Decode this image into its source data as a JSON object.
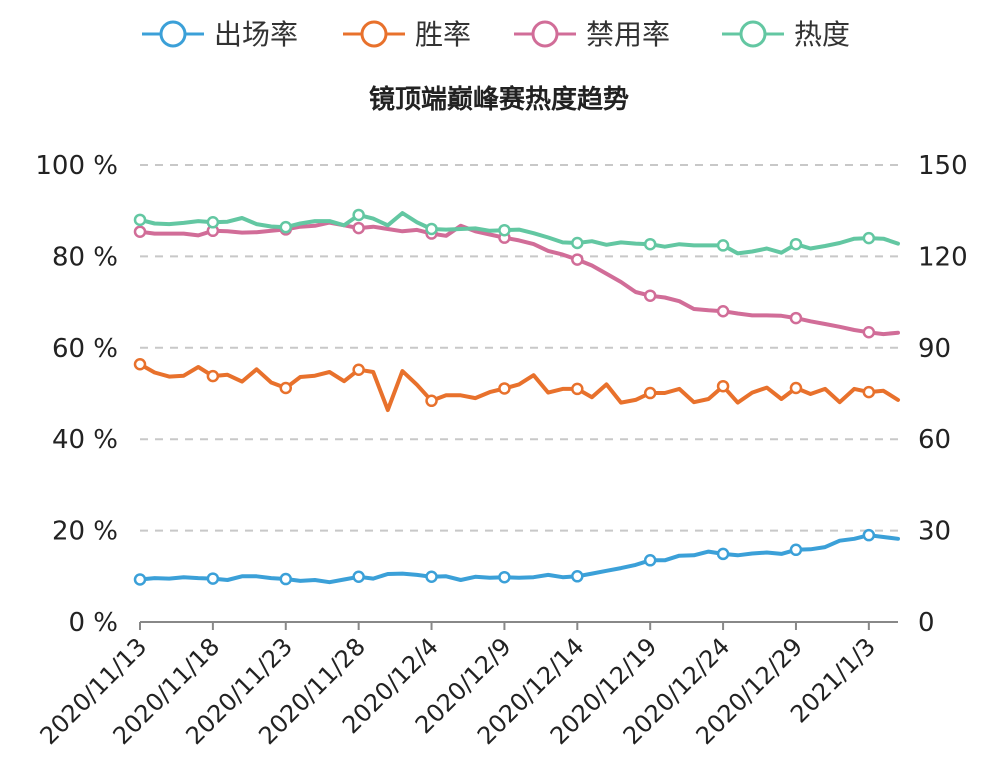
{
  "chart_data": {
    "type": "line",
    "title": "镜顶端巅峰赛热度趋势",
    "legend_position": "top-center",
    "grid": "horizontal-dashed",
    "y_left": {
      "min": 0,
      "max": 100,
      "ticks": [
        0,
        20,
        40,
        60,
        80,
        100
      ],
      "tick_labels": [
        "0 %",
        "20 %",
        "40 %",
        "60 %",
        "80 %",
        "100 %"
      ]
    },
    "y_right": {
      "min": 0,
      "max": 150,
      "ticks": [
        0,
        30,
        60,
        90,
        120,
        150
      ],
      "tick_labels": [
        "0",
        "30",
        "60",
        "90",
        "120",
        "150"
      ]
    },
    "x_tick_labels": [
      "2020/11/13",
      "2020/11/18",
      "2020/11/23",
      "2020/11/28",
      "2020/12/4",
      "2020/12/9",
      "2020/12/14",
      "2020/12/19",
      "2020/12/24",
      "2020/12/29",
      "2021/1/3"
    ],
    "x_tick_index": [
      0,
      5,
      10,
      15,
      20,
      25,
      30,
      35,
      40,
      45,
      50
    ],
    "series": [
      {
        "name": "出场率",
        "axis": "left",
        "color": "#3ba0d8",
        "marker_every": 5,
        "values": [
          9.3,
          9.6,
          9.5,
          9.8,
          9.6,
          9.5,
          9.2,
          10.0,
          10.0,
          9.6,
          9.4,
          9.0,
          9.2,
          8.7,
          9.3,
          9.9,
          9.5,
          10.5,
          10.6,
          10.3,
          9.9,
          10.0,
          9.2,
          9.9,
          9.7,
          9.8,
          9.7,
          9.8,
          10.3,
          9.8,
          10.0,
          10.6,
          11.2,
          11.8,
          12.5,
          13.5,
          13.5,
          14.5,
          14.6,
          15.4,
          14.9,
          14.6,
          15.0,
          15.2,
          14.9,
          15.8,
          15.9,
          16.4,
          17.8,
          18.2,
          19.0,
          18.6,
          18.2
        ]
      },
      {
        "name": "胜率",
        "axis": "left",
        "color": "#e8712c",
        "marker_every": 5,
        "values": [
          56.4,
          54.6,
          53.7,
          53.9,
          55.8,
          53.8,
          54.1,
          52.6,
          55.3,
          52.4,
          51.2,
          53.6,
          53.9,
          54.7,
          52.7,
          55.2,
          54.7,
          46.4,
          54.9,
          51.9,
          48.4,
          49.6,
          49.6,
          49.0,
          50.3,
          51.1,
          52.0,
          54.0,
          50.2,
          51.0,
          51.0,
          49.2,
          52.0,
          48.0,
          48.6,
          50.1,
          50.1,
          51.0,
          48.1,
          48.8,
          51.6,
          48.0,
          50.2,
          51.3,
          48.8,
          51.2,
          49.9,
          51.0,
          48.1,
          51.0,
          50.3,
          50.6,
          48.6
        ]
      },
      {
        "name": "禁用率",
        "axis": "left",
        "color": "#d16d98",
        "marker_every": 5,
        "values": [
          85.4,
          85.0,
          85.0,
          85.0,
          84.6,
          85.6,
          85.5,
          85.2,
          85.3,
          85.6,
          85.9,
          86.5,
          86.7,
          87.4,
          86.8,
          86.2,
          86.5,
          86.0,
          85.5,
          85.8,
          85.0,
          84.5,
          86.7,
          85.5,
          84.8,
          84.1,
          83.5,
          82.7,
          81.2,
          80.4,
          79.3,
          78.0,
          76.2,
          74.4,
          72.2,
          71.4,
          71.0,
          70.2,
          68.5,
          68.2,
          68.0,
          67.5,
          67.1,
          67.1,
          67.0,
          66.5,
          65.8,
          65.2,
          64.6,
          63.9,
          63.4,
          63.0,
          63.3
        ]
      },
      {
        "name": "热度",
        "axis": "right",
        "color": "#63c7a2",
        "marker_every": 5,
        "values": [
          132.0,
          130.8,
          130.6,
          131.0,
          131.6,
          131.2,
          131.4,
          132.6,
          130.6,
          129.8,
          129.6,
          130.8,
          131.6,
          131.6,
          130.2,
          133.6,
          132.4,
          130.2,
          134.2,
          131.2,
          129.0,
          128.8,
          129.0,
          129.2,
          128.4,
          128.6,
          128.8,
          127.6,
          126.2,
          124.6,
          124.4,
          125.0,
          123.8,
          124.6,
          124.2,
          124.0,
          123.2,
          124.0,
          123.6,
          123.6,
          123.6,
          121.0,
          121.6,
          122.6,
          121.2,
          124.0,
          122.6,
          123.4,
          124.4,
          125.8,
          126.0,
          125.8,
          124.2
        ]
      }
    ]
  }
}
